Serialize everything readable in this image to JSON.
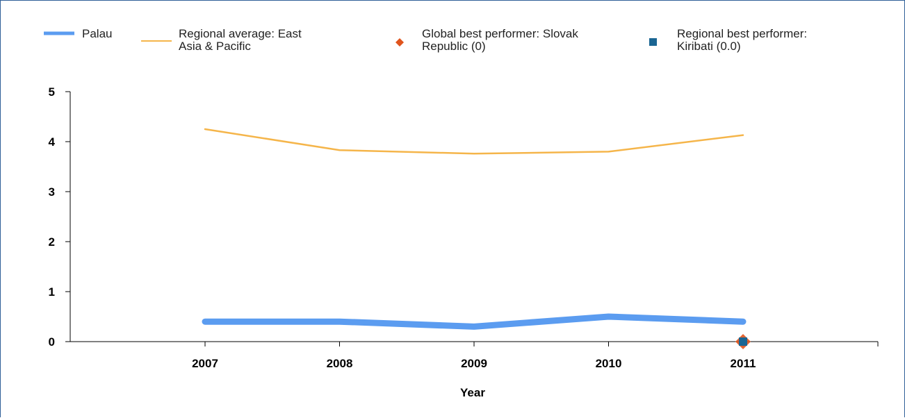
{
  "chart_data": {
    "type": "line",
    "xlabel": "Year",
    "ylabel": "",
    "x": [
      2007,
      2008,
      2009,
      2010,
      2011
    ],
    "ylim": [
      0,
      5
    ],
    "yticks": [
      0,
      1,
      2,
      3,
      4,
      5
    ],
    "grid": false,
    "legend_position": "top",
    "series": [
      {
        "name": "Palau",
        "kind": "line",
        "color": "#5b9cf0",
        "values": [
          0.4,
          0.4,
          0.3,
          0.5,
          0.4
        ]
      },
      {
        "name": "Regional average: East Asia & Pacific",
        "kind": "line",
        "color": "#f5b54a",
        "values": [
          4.25,
          3.83,
          3.76,
          3.8,
          4.13
        ]
      },
      {
        "name": "Global best performer: Slovak Republic (0)",
        "kind": "marker",
        "marker": "diamond",
        "color": "#e0541d",
        "points": [
          {
            "x": 2011,
            "y": 0
          }
        ]
      },
      {
        "name": "Regional best performer: Kiribati (0.0)",
        "kind": "marker",
        "marker": "square",
        "color": "#1a6593",
        "points": [
          {
            "x": 2011,
            "y": 0
          }
        ]
      }
    ]
  }
}
